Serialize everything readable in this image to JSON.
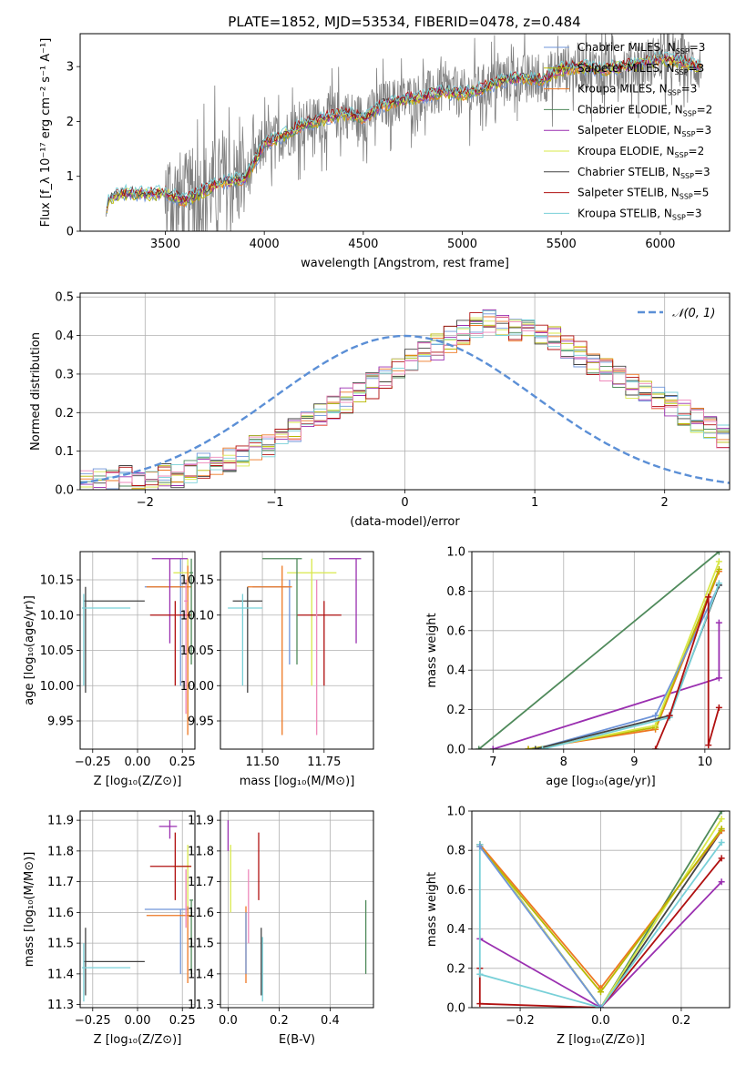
{
  "page_title": "PLATE=1852, MJD=53534, FIBERID=0478, z=0.484",
  "colors": {
    "Chabrier MILES": "#6f95d9",
    "Salpeter MILES": "#b8b800",
    "Kroupa MILES": "#ee7722",
    "Chabrier ELODIE": "#4f8a5b",
    "Salpeter ELODIE": "#9a2fb0",
    "Kroupa ELODIE": "#d9e84a",
    "Chabrier STELIB": "#444444",
    "Salpeter STELIB": "#b01010",
    "Kroupa STELIB": "#78d0d8",
    "pink": "#ee88bb",
    "normal": "#5b8fd6",
    "data": "#808080"
  },
  "chart_data": [
    {
      "id": "spectrum",
      "type": "line",
      "title": "PLATE=1852, MJD=53534, FIBERID=0478, z=0.484",
      "xlabel": "wavelength [Angstrom, rest frame]",
      "ylabel": "Flux [f_λ 10⁻¹⁷ erg cm⁻² s⁻¹ A⁻¹]",
      "xlim": [
        3070,
        6350
      ],
      "ylim": [
        0,
        3.6
      ],
      "xticks": [
        3500,
        4000,
        4500,
        5000,
        5500,
        6000
      ],
      "yticks": [
        0,
        1,
        2,
        3
      ],
      "legend": [
        {
          "label": "Chabrier MILES, N",
          "sub": "SSP",
          "n": "=3",
          "color": "#6f95d9"
        },
        {
          "label": "Salpeter MILES, N",
          "sub": "SSP",
          "n": "=3",
          "color": "#b8b800"
        },
        {
          "label": "Kroupa MILES, N",
          "sub": "SSP",
          "n": "=3",
          "color": "#ee7722"
        },
        {
          "label": "Chabrier ELODIE, N",
          "sub": "SSP",
          "n": "=2",
          "color": "#4f8a5b"
        },
        {
          "label": "Salpeter ELODIE, N",
          "sub": "SSP",
          "n": "=3",
          "color": "#9a2fb0"
        },
        {
          "label": "Kroupa ELODIE, N",
          "sub": "SSP",
          "n": "=2",
          "color": "#d9e84a"
        },
        {
          "label": "Chabrier STELIB, N",
          "sub": "SSP",
          "n": "=3",
          "color": "#444444"
        },
        {
          "label": "Salpeter STELIB, N",
          "sub": "SSP",
          "n": "=5",
          "color": "#b01010"
        },
        {
          "label": "Kroupa STELIB, N",
          "sub": "SSP",
          "n": "=3",
          "color": "#78d0d8"
        }
      ],
      "continuum": {
        "x": [
          3200,
          3210,
          3250,
          3300,
          3400,
          3500,
          3600,
          3700,
          3800,
          3900,
          3950,
          4000,
          4100,
          4200,
          4300,
          4400,
          4500,
          4600,
          4700,
          4800,
          4900,
          5000,
          5100,
          5200,
          5300,
          5400,
          5500,
          5600,
          5700,
          5800,
          5900,
          6000,
          6100,
          6200
        ],
        "y": [
          0.25,
          0.55,
          0.65,
          0.7,
          0.68,
          0.7,
          0.55,
          0.75,
          0.9,
          0.95,
          1.25,
          1.6,
          1.75,
          1.95,
          2.05,
          2.15,
          2.05,
          2.3,
          2.4,
          2.45,
          2.55,
          2.5,
          2.6,
          2.75,
          2.8,
          2.75,
          2.95,
          3.0,
          2.95,
          3.0,
          3.05,
          3.15,
          3.1,
          3.0
        ]
      }
    },
    {
      "id": "residuals",
      "type": "bar",
      "xlabel": "(data-model)/error",
      "ylabel": "Normed distribution",
      "xlim": [
        -2.5,
        2.5
      ],
      "ylim": [
        0,
        0.51
      ],
      "xticks": [
        -2,
        -1,
        0,
        1,
        2
      ],
      "yticks": [
        0.0,
        0.1,
        0.2,
        0.3,
        0.4,
        0.5
      ],
      "legend": "$\\mathcal{N}(0, 1)$",
      "legend_text": "𝒩(0, 1)",
      "bin_width": 0.1,
      "hist_base": [
        0.02,
        0.02,
        0.02,
        0.03,
        0.03,
        0.03,
        0.04,
        0.04,
        0.05,
        0.06,
        0.07,
        0.08,
        0.09,
        0.11,
        0.12,
        0.14,
        0.16,
        0.17,
        0.19,
        0.21,
        0.23,
        0.25,
        0.27,
        0.29,
        0.31,
        0.33,
        0.35,
        0.37,
        0.39,
        0.41,
        0.43,
        0.44,
        0.43,
        0.42,
        0.41,
        0.4,
        0.39,
        0.37,
        0.35,
        0.33,
        0.31,
        0.29,
        0.27,
        0.26,
        0.24,
        0.22,
        0.2,
        0.18,
        0.16,
        0.14,
        0.12,
        0.1,
        0.08,
        0.07,
        0.06,
        0.05,
        0.04,
        0.04,
        0.05,
        0.04
      ]
    },
    {
      "id": "age-vs-Z",
      "type": "scatter",
      "xlabel": "Z [log₁₀(Z/Z⊙)]",
      "ylabel": "age  [log₁₀(age/yr)]",
      "xlim": [
        -0.32,
        0.32
      ],
      "ylim": [
        9.91,
        10.19
      ],
      "xticks": [
        -0.25,
        0.0,
        0.25
      ],
      "xticklabels": [
        "−0.25",
        "0.00",
        "0.25"
      ],
      "yticks": [
        9.95,
        10.0,
        10.05,
        10.1,
        10.15
      ],
      "points": [
        {
          "x": -0.29,
          "y": 10.12,
          "xe": [
            -0.3,
            0.04
          ],
          "ye": [
            9.99,
            10.14
          ],
          "c": "#444444"
        },
        {
          "x": -0.3,
          "y": 10.11,
          "xe": [
            -0.31,
            -0.04
          ],
          "ye": [
            10.0,
            10.13
          ],
          "c": "#78d0d8"
        },
        {
          "x": 0.24,
          "y": 10.14,
          "xe": [
            0.04,
            0.28
          ],
          "ye": [
            10.0,
            10.18
          ],
          "c": "#6f95d9"
        },
        {
          "x": 0.28,
          "y": 10.16,
          "xe": [
            0.2,
            0.3
          ],
          "ye": [
            9.96,
            10.18
          ],
          "c": "#d9e84a"
        },
        {
          "x": 0.28,
          "y": 10.14,
          "xe": [
            0.05,
            0.3
          ],
          "ye": [
            9.93,
            10.17
          ],
          "c": "#ee7722"
        },
        {
          "x": 0.18,
          "y": 10.18,
          "xe": [
            0.08,
            0.28
          ],
          "ye": [
            10.06,
            10.18
          ],
          "c": "#9a2fb0"
        },
        {
          "x": 0.21,
          "y": 10.1,
          "xe": [
            0.07,
            0.3
          ],
          "ye": [
            10.0,
            10.12
          ],
          "c": "#b01010"
        },
        {
          "x": 0.3,
          "y": 10.16,
          "xe": [
            0.29,
            0.31
          ],
          "ye": [
            10.03,
            10.18
          ],
          "c": "#4f8a5b"
        },
        {
          "x": 0.27,
          "y": 10.12,
          "xe": [
            0.26,
            0.28
          ],
          "ye": [
            9.96,
            10.15
          ],
          "c": "#ee88bb"
        }
      ]
    },
    {
      "id": "age-vs-mass",
      "type": "scatter",
      "xlabel": "mass [log₁₀(M/M⊙)]",
      "xlim": [
        11.33,
        11.95
      ],
      "ylim": [
        9.91,
        10.19
      ],
      "xticks": [
        11.5,
        11.75
      ],
      "yticks": [
        9.95,
        10.0,
        10.05,
        10.1,
        10.15
      ],
      "points": [
        {
          "x": 11.44,
          "y": 10.12,
          "xe": [
            11.38,
            11.5
          ],
          "ye": [
            9.99,
            10.14
          ],
          "c": "#444444"
        },
        {
          "x": 11.42,
          "y": 10.11,
          "xe": [
            11.36,
            11.5
          ],
          "ye": [
            10.0,
            10.13
          ],
          "c": "#78d0d8"
        },
        {
          "x": 11.61,
          "y": 10.14,
          "xe": [
            11.46,
            11.61
          ],
          "ye": [
            10.03,
            10.15
          ],
          "c": "#6f95d9"
        },
        {
          "x": 11.7,
          "y": 10.16,
          "xe": [
            11.6,
            11.8
          ],
          "ye": [
            10.0,
            10.18
          ],
          "c": "#d9e84a"
        },
        {
          "x": 11.58,
          "y": 10.14,
          "xe": [
            11.44,
            11.62
          ],
          "ye": [
            9.93,
            10.17
          ],
          "c": "#ee7722"
        },
        {
          "x": 11.88,
          "y": 10.18,
          "xe": [
            11.77,
            11.9
          ],
          "ye": [
            10.06,
            10.18
          ],
          "c": "#9a2fb0"
        },
        {
          "x": 11.75,
          "y": 10.1,
          "xe": [
            11.64,
            11.82
          ],
          "ye": [
            10.0,
            10.12
          ],
          "c": "#b01010"
        },
        {
          "x": 11.64,
          "y": 10.18,
          "xe": [
            11.5,
            11.66
          ],
          "ye": [
            10.03,
            10.18
          ],
          "c": "#4f8a5b"
        },
        {
          "x": 11.72,
          "y": 10.12,
          "xe": [
            11.72,
            11.72
          ],
          "ye": [
            9.93,
            10.15
          ],
          "c": "#ee88bb"
        }
      ]
    },
    {
      "id": "weight-vs-age",
      "type": "line",
      "xlabel": "age  [log₁₀(age/yr)]",
      "ylabel": "mass weight",
      "xlim": [
        6.7,
        10.35
      ],
      "ylim": [
        0,
        1
      ],
      "xticks": [
        7,
        8,
        9,
        10
      ],
      "yticks": [
        0.0,
        0.2,
        0.4,
        0.6,
        0.8,
        1.0
      ],
      "series": [
        {
          "x": [
            6.8,
            10.2
          ],
          "y": [
            0.0,
            1.0
          ],
          "c": "#4f8a5b"
        },
        {
          "x": [
            7.0,
            10.2,
            10.2
          ],
          "y": [
            0.0,
            0.36,
            0.64
          ],
          "c": "#9a2fb0"
        },
        {
          "x": [
            7.5,
            9.3,
            10.2
          ],
          "y": [
            0.0,
            0.1,
            0.9
          ],
          "c": "#ee7722"
        },
        {
          "x": [
            7.5,
            9.3,
            10.2
          ],
          "y": [
            0.0,
            0.11,
            0.91
          ],
          "c": "#b8b800"
        },
        {
          "x": [
            7.6,
            9.3,
            10.2
          ],
          "y": [
            0.0,
            0.12,
            0.95
          ],
          "c": "#d9e84a"
        },
        {
          "x": [
            7.6,
            9.3,
            10.2
          ],
          "y": [
            0.0,
            0.17,
            0.83
          ],
          "c": "#6f95d9"
        },
        {
          "x": [
            7.6,
            9.5,
            10.2
          ],
          "y": [
            0.0,
            0.17,
            0.83
          ],
          "c": "#444444"
        },
        {
          "x": [
            7.7,
            9.5,
            10.2
          ],
          "y": [
            0.0,
            0.16,
            0.84
          ],
          "c": "#78d0d8"
        },
        {
          "x": [
            9.3,
            9.5,
            10.05,
            10.05,
            10.2
          ],
          "y": [
            0.0,
            0.17,
            0.77,
            0.02,
            0.21
          ],
          "c": "#b01010"
        }
      ]
    },
    {
      "id": "mass-vs-Z",
      "type": "scatter",
      "xlabel": "Z [log₁₀(Z/Z⊙)]",
      "ylabel": "mass [log₁₀(M/M⊙)]",
      "xlim": [
        -0.32,
        0.32
      ],
      "ylim": [
        11.29,
        11.93
      ],
      "xticks": [
        -0.25,
        0.0,
        0.25
      ],
      "xticklabels": [
        "−0.25",
        "0.00",
        "0.25"
      ],
      "yticks": [
        11.3,
        11.4,
        11.5,
        11.6,
        11.7,
        11.8,
        11.9
      ],
      "points": [
        {
          "x": -0.29,
          "y": 11.44,
          "xe": [
            -0.3,
            0.04
          ],
          "ye": [
            11.33,
            11.55
          ],
          "c": "#444444"
        },
        {
          "x": -0.3,
          "y": 11.42,
          "xe": [
            -0.31,
            -0.04
          ],
          "ye": [
            11.31,
            11.5
          ],
          "c": "#78d0d8"
        },
        {
          "x": 0.24,
          "y": 11.61,
          "xe": [
            0.04,
            0.28
          ],
          "ye": [
            11.4,
            11.61
          ],
          "c": "#6f95d9"
        },
        {
          "x": 0.28,
          "y": 11.75,
          "xe": [
            0.2,
            0.3
          ],
          "ye": [
            11.6,
            11.82
          ],
          "c": "#d9e84a"
        },
        {
          "x": 0.28,
          "y": 11.59,
          "xe": [
            0.05,
            0.3
          ],
          "ye": [
            11.37,
            11.62
          ],
          "c": "#ee7722"
        },
        {
          "x": 0.18,
          "y": 11.88,
          "xe": [
            0.12,
            0.22
          ],
          "ye": [
            11.84,
            11.9
          ],
          "c": "#9a2fb0"
        },
        {
          "x": 0.21,
          "y": 11.75,
          "xe": [
            0.07,
            0.3
          ],
          "ye": [
            11.64,
            11.86
          ],
          "c": "#b01010"
        },
        {
          "x": 0.3,
          "y": 11.64,
          "xe": [
            0.29,
            0.31
          ],
          "ye": [
            11.4,
            11.64
          ],
          "c": "#4f8a5b"
        },
        {
          "x": 0.27,
          "y": 11.72,
          "xe": [
            0.27,
            0.27
          ],
          "ye": [
            11.55,
            11.74
          ],
          "c": "#ee88bb"
        }
      ]
    },
    {
      "id": "mass-vs-ebv",
      "type": "scatter",
      "xlabel": "E(B-V)",
      "xlim": [
        -0.03,
        0.57
      ],
      "ylim": [
        11.29,
        11.93
      ],
      "xticks": [
        0.0,
        0.2,
        0.4
      ],
      "xticklabels": [
        "0.0",
        "0.2",
        "0.4"
      ],
      "yticks": [
        11.3,
        11.4,
        11.5,
        11.6,
        11.7,
        11.8,
        11.9
      ],
      "points": [
        {
          "x": 0.0,
          "y": 11.84,
          "ye": [
            11.8,
            11.9
          ],
          "c": "#9a2fb0"
        },
        {
          "x": 0.01,
          "y": 11.7,
          "ye": [
            11.6,
            11.82
          ],
          "c": "#d9e84a"
        },
        {
          "x": 0.07,
          "y": 11.6,
          "ye": [
            11.37,
            11.62
          ],
          "c": "#ee7722"
        },
        {
          "x": 0.08,
          "y": 11.65,
          "ye": [
            11.5,
            11.74
          ],
          "c": "#ee88bb"
        },
        {
          "x": 0.07,
          "y": 11.5,
          "ye": [
            11.4,
            11.6
          ],
          "c": "#6f95d9"
        },
        {
          "x": 0.12,
          "y": 11.75,
          "ye": [
            11.64,
            11.86
          ],
          "c": "#b01010"
        },
        {
          "x": 0.13,
          "y": 11.44,
          "ye": [
            11.33,
            11.55
          ],
          "c": "#444444"
        },
        {
          "x": 0.135,
          "y": 11.42,
          "ye": [
            11.31,
            11.52
          ],
          "c": "#78d0d8"
        },
        {
          "x": 0.54,
          "y": 11.52,
          "ye": [
            11.4,
            11.64
          ],
          "c": "#4f8a5b"
        }
      ]
    },
    {
      "id": "weight-vs-Z",
      "type": "line",
      "xlabel": "Z [log₁₀(Z/Z⊙)]",
      "ylabel": "mass weight",
      "xlim": [
        -0.32,
        0.32
      ],
      "ylim": [
        0,
        1
      ],
      "xticks": [
        -0.2,
        0.0,
        0.2
      ],
      "xticklabels": [
        "−0.2",
        "0.0",
        "0.2"
      ],
      "yticks": [
        0.0,
        0.2,
        0.4,
        0.6,
        0.8,
        1.0
      ],
      "series": [
        {
          "x": [
            -0.3,
            0.0,
            0.3
          ],
          "y": [
            0.83,
            0.0,
            1.0
          ],
          "c": "#4f8a5b"
        },
        {
          "x": [
            -0.3,
            0.0,
            0.3
          ],
          "y": [
            0.83,
            0.0,
            0.9
          ],
          "c": "#444444"
        },
        {
          "x": [
            -0.3,
            0.0,
            0.3
          ],
          "y": [
            0.83,
            0.0,
            0.96
          ],
          "c": "#d9e84a"
        },
        {
          "x": [
            -0.3,
            0.0,
            0.3
          ],
          "y": [
            0.83,
            0.1,
            0.9
          ],
          "c": "#ee7722"
        },
        {
          "x": [
            -0.3,
            0.0,
            0.3
          ],
          "y": [
            0.82,
            0.08,
            0.91
          ],
          "c": "#b8b800"
        },
        {
          "x": [
            -0.3,
            0.0,
            0.3
          ],
          "y": [
            0.35,
            0.0,
            0.64
          ],
          "c": "#9a2fb0"
        },
        {
          "x": [
            -0.3,
            -0.3,
            0.0,
            0.3
          ],
          "y": [
            0.2,
            0.02,
            0.0,
            0.76
          ],
          "c": "#b01010"
        },
        {
          "x": [
            -0.3,
            -0.3,
            0.0,
            0.3
          ],
          "y": [
            0.83,
            0.17,
            0.0,
            0.84
          ],
          "c": "#78d0d8"
        },
        {
          "x": [
            -0.3,
            0.0
          ],
          "y": [
            0.82,
            0.0
          ],
          "c": "#6f95d9"
        }
      ]
    }
  ]
}
